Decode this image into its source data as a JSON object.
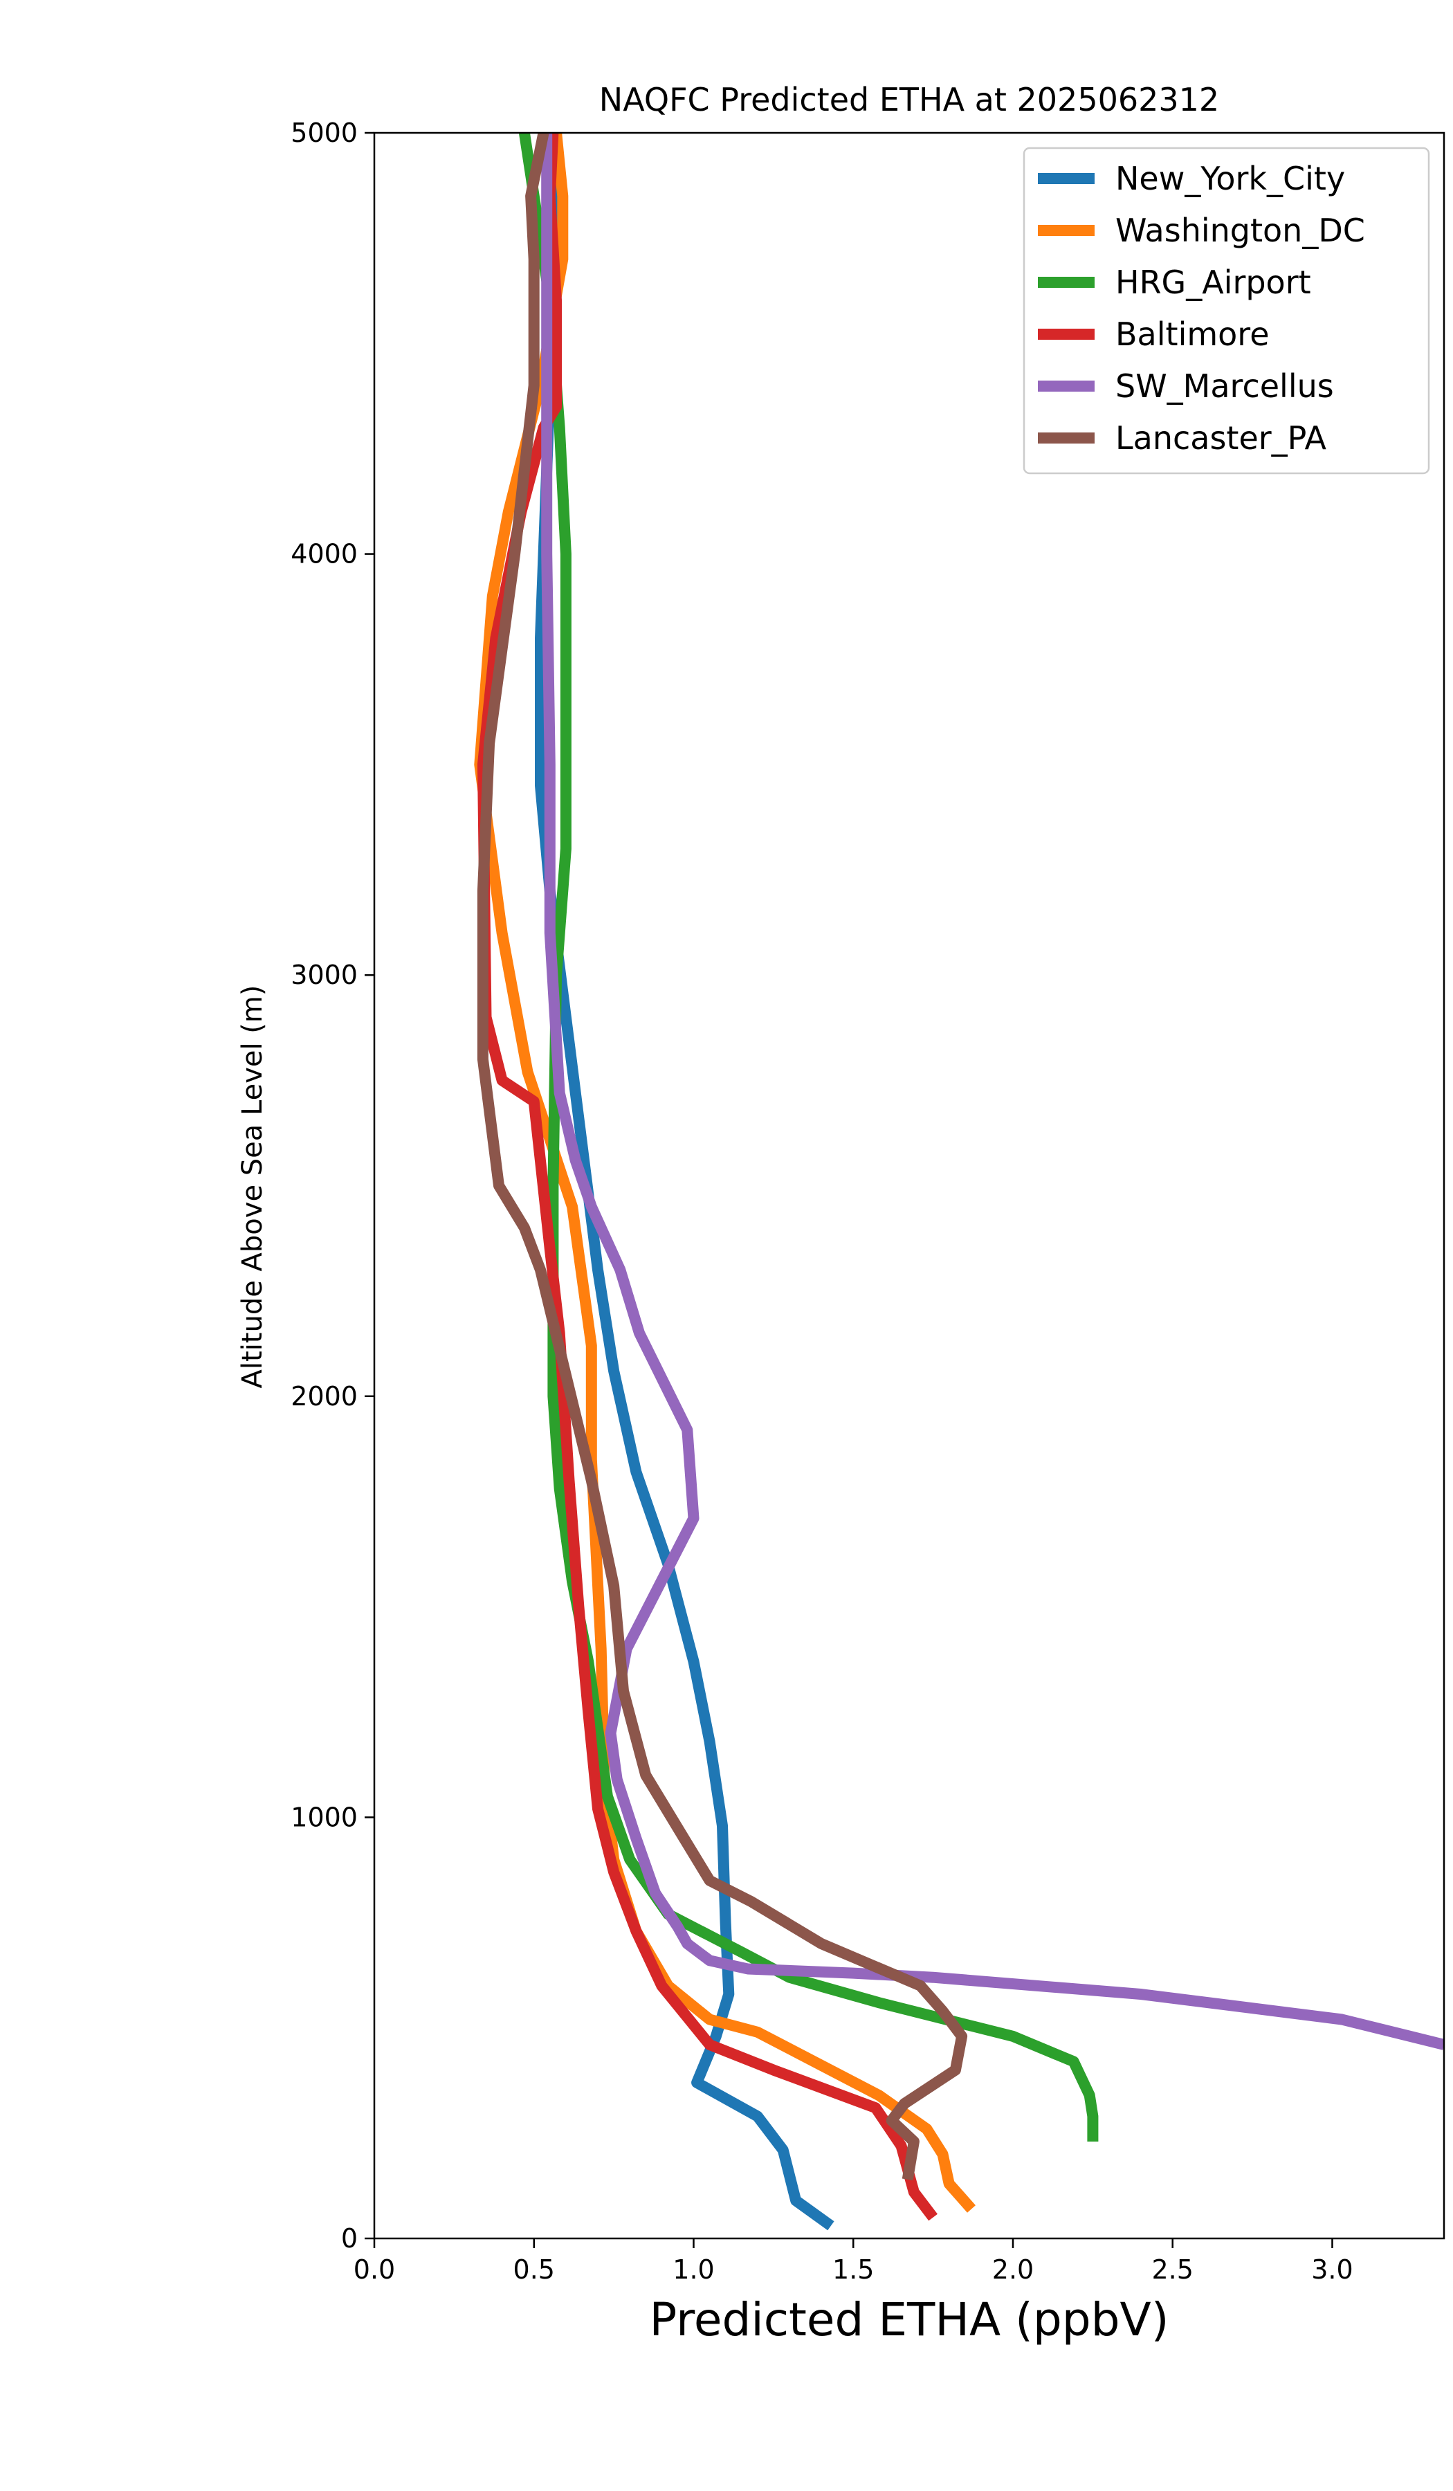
{
  "chart_data": {
    "type": "line",
    "title": "NAQFC Predicted ETHA at 2025062312",
    "xlabel": "Predicted ETHA (ppbV)",
    "ylabel": "Altitude Above Sea Level (m)",
    "xlim": [
      0,
      3.35
    ],
    "ylim": [
      0,
      5000
    ],
    "x_ticks": [
      "0.0",
      "0.5",
      "1.0",
      "1.5",
      "2.0",
      "2.5",
      "3.0"
    ],
    "y_ticks": [
      "0",
      "1000",
      "2000",
      "3000",
      "4000",
      "5000"
    ],
    "grid": false,
    "legend_position": "top-right",
    "series": [
      {
        "name": "New_York_City",
        "color": "#1f77b4",
        "x": [
          1.43,
          1.32,
          1.28,
          1.2,
          1.01,
          1.07,
          1.11,
          1.1,
          1.09,
          1.05,
          1.0,
          0.92,
          0.82,
          0.75,
          0.7,
          0.65,
          0.6,
          0.55,
          0.52,
          0.52,
          0.54,
          0.56,
          0.57
        ],
        "y": [
          30,
          90,
          210,
          290,
          370,
          480,
          580,
          750,
          980,
          1180,
          1370,
          1600,
          1820,
          2060,
          2300,
          2600,
          2900,
          3200,
          3450,
          3800,
          4200,
          4600,
          5000
        ]
      },
      {
        "name": "Washington_DC",
        "color": "#ff7f0e",
        "x": [
          1.87,
          1.8,
          1.78,
          1.73,
          1.58,
          1.2,
          1.05,
          0.92,
          0.82,
          0.75,
          0.72,
          0.71,
          0.68,
          0.68,
          0.62,
          0.48,
          0.4,
          0.33,
          0.37,
          0.42,
          0.52,
          0.59,
          0.59,
          0.57
        ],
        "y": [
          70,
          130,
          200,
          260,
          340,
          490,
          520,
          600,
          730,
          900,
          1100,
          1400,
          1850,
          2120,
          2450,
          2770,
          3100,
          3500,
          3900,
          4100,
          4400,
          4700,
          4850,
          5000
        ]
      },
      {
        "name": "HRG_Airport",
        "color": "#2ca02c",
        "x": [
          2.25,
          2.25,
          2.24,
          2.19,
          2.0,
          1.58,
          1.3,
          1.15,
          0.92,
          0.8,
          0.73,
          0.67,
          0.62,
          0.58,
          0.56,
          0.56,
          0.57,
          0.6,
          0.6,
          0.6,
          0.58,
          0.55,
          0.47
        ],
        "y": [
          230,
          290,
          340,
          420,
          480,
          560,
          620,
          680,
          770,
          900,
          1050,
          1370,
          1560,
          1780,
          2000,
          2500,
          3000,
          3300,
          3640,
          4000,
          4300,
          4600,
          5000
        ]
      },
      {
        "name": "Baltimore",
        "color": "#d62728",
        "x": [
          1.75,
          1.69,
          1.65,
          1.57,
          1.25,
          1.05,
          0.9,
          0.82,
          0.75,
          0.7,
          0.67,
          0.64,
          0.61,
          0.58,
          0.55,
          0.5,
          0.4,
          0.35,
          0.34,
          0.38,
          0.46,
          0.53,
          0.57,
          0.57,
          0.55,
          0.56
        ],
        "y": [
          50,
          110,
          220,
          310,
          400,
          460,
          600,
          730,
          870,
          1020,
          1250,
          1500,
          1800,
          2150,
          2350,
          2700,
          2750,
          2900,
          3500,
          3800,
          4100,
          4300,
          4350,
          4600,
          4850,
          5000
        ]
      },
      {
        "name": "SW_Marcellus",
        "color": "#9467bd",
        "x": [
          3.35,
          3.03,
          2.4,
          1.75,
          1.5,
          1.17,
          1.05,
          0.98,
          0.95,
          0.88,
          0.82,
          0.76,
          0.74,
          0.79,
          1.0,
          0.98,
          0.83,
          0.77,
          0.68,
          0.63,
          0.58,
          0.55,
          0.55,
          0.54,
          0.54,
          0.54
        ],
        "y": [
          460,
          520,
          580,
          620,
          630,
          640,
          660,
          700,
          740,
          820,
          950,
          1090,
          1200,
          1400,
          1710,
          1920,
          2150,
          2300,
          2450,
          2560,
          2720,
          3100,
          3500,
          4000,
          4500,
          5000
        ]
      },
      {
        "name": "Lancaster_PA",
        "color": "#8c564b",
        "x": [
          1.67,
          1.69,
          1.62,
          1.66,
          1.82,
          1.84,
          1.78,
          1.71,
          1.4,
          1.18,
          1.05,
          0.97,
          0.85,
          0.78,
          0.75,
          0.68,
          0.6,
          0.52,
          0.47,
          0.39,
          0.34,
          0.34,
          0.36,
          0.44,
          0.5,
          0.5,
          0.49,
          0.53
        ],
        "y": [
          140,
          230,
          280,
          320,
          400,
          480,
          540,
          600,
          700,
          800,
          850,
          950,
          1100,
          1300,
          1550,
          1800,
          2050,
          2300,
          2400,
          2500,
          2800,
          3200,
          3550,
          4000,
          4400,
          4700,
          4850,
          5000
        ]
      }
    ]
  }
}
